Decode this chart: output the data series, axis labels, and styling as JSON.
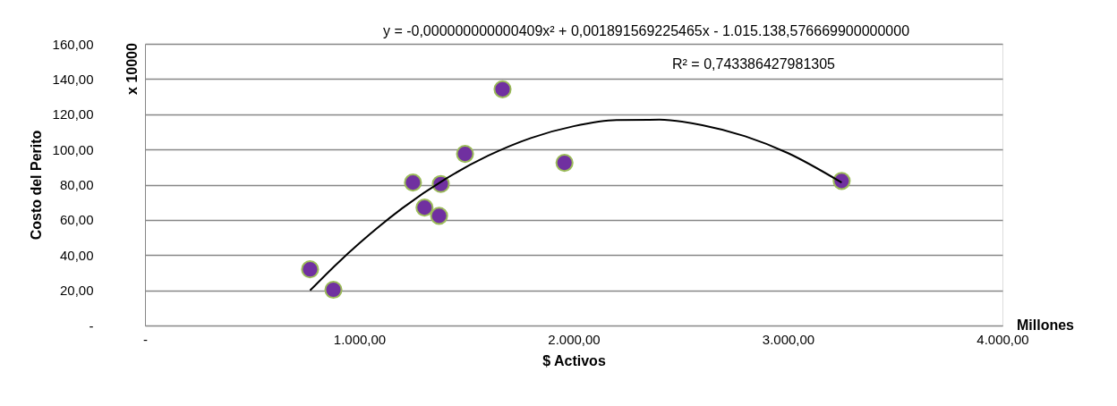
{
  "chart_data": {
    "type": "scatter",
    "xlabel": "$ Activos",
    "ylabel": "Costo del Perito",
    "annotations": [
      "y = -0,000000000000409x² + 0,001891569225465x - 1.015.138,576669900000000",
      "R² = 0,743386427981305",
      "Millones",
      "x 10000"
    ],
    "series": [
      {
        "color": "#7030a0",
        "x": [
          770,
          879,
          1250,
          1304,
          1380,
          1372,
          1493,
          1668,
          1957,
          3250
        ],
        "values": [
          31.9,
          20.3,
          81.2,
          67.0,
          80.4,
          62.3,
          97.5,
          134.2,
          92.4,
          82.1
        ]
      },
      {
        "type": "line",
        "marker": "none",
        "line_style": "solid",
        "color": "#000000",
        "x": [
          770,
          900,
          1000,
          1200,
          1400,
          1600,
          1800,
          2000,
          2200,
          2400,
          2600,
          2800,
          3000,
          3250
        ],
        "values": [
          19.9,
          35.6,
          46.7,
          66.6,
          83.1,
          96.4,
          106.5,
          113.2,
          116.7,
          116.9,
          113.8,
          107.5,
          97.9,
          81.2
        ]
      }
    ],
    "xlim": [
      0,
      4000
    ],
    "xticks": [
      {
        "value": 0,
        "label": "-"
      },
      {
        "value": 1000,
        "label": "1.000,00"
      },
      {
        "value": 2000,
        "label": "2.000,00"
      },
      {
        "value": 3000,
        "label": "3.000,00"
      },
      {
        "value": 4000,
        "label": "4.000,00"
      }
    ],
    "ylim": [
      0,
      160
    ],
    "yticks": [
      {
        "value": 0,
        "label": "-"
      },
      {
        "value": 20,
        "label": "20,00"
      },
      {
        "value": 40,
        "label": "40,00"
      },
      {
        "value": 60,
        "label": "60,00"
      },
      {
        "value": 80,
        "label": "80,00"
      },
      {
        "value": 100,
        "label": "100,00"
      },
      {
        "value": 120,
        "label": "120,00"
      },
      {
        "value": 140,
        "label": "140,00"
      },
      {
        "value": 160,
        "label": "160,00"
      }
    ],
    "grid": "y",
    "marker": "circle"
  }
}
